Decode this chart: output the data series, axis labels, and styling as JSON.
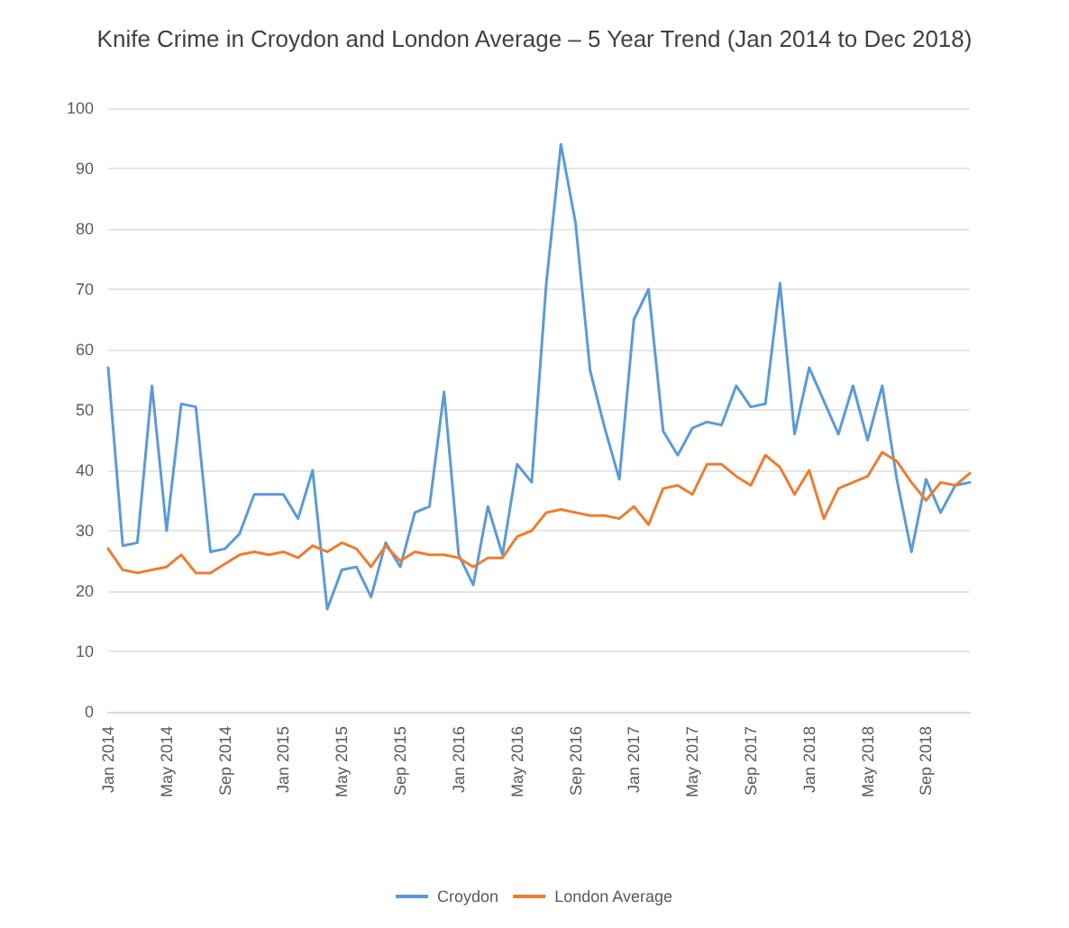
{
  "chart_data": {
    "type": "line",
    "title": "Knife Crime in Croydon and London Average – 5 Year Trend (Jan 2014 to Dec 2018)",
    "categories": [
      "Jan 2014",
      null,
      null,
      null,
      "May 2014",
      null,
      null,
      null,
      "Sep 2014",
      null,
      null,
      null,
      "Jan 2015",
      null,
      null,
      null,
      "May 2015",
      null,
      null,
      null,
      "Sep 2015",
      null,
      null,
      null,
      "Jan 2016",
      null,
      null,
      null,
      "May 2016",
      null,
      null,
      null,
      "Sep 2016",
      null,
      null,
      null,
      "Jan 2017",
      null,
      null,
      null,
      "May 2017",
      null,
      null,
      null,
      "Sep 2017",
      null,
      null,
      null,
      "Jan 2018",
      null,
      null,
      null,
      "May 2018",
      null,
      null,
      null,
      "Sep 2018",
      null,
      null,
      null
    ],
    "series": [
      {
        "name": "Croydon",
        "color": "#5b9bd5",
        "values": [
          57,
          27.5,
          28,
          54,
          30,
          51,
          50.5,
          26.5,
          27,
          29.5,
          36,
          36,
          36,
          32,
          40,
          17,
          23.5,
          24,
          19,
          28,
          24,
          33,
          34,
          53,
          26,
          21,
          34,
          26,
          41,
          38,
          71,
          94,
          81,
          56.5,
          47,
          38.5,
          65,
          70,
          46.5,
          42.5,
          47,
          48,
          47.5,
          54,
          50.5,
          51,
          71,
          46,
          57,
          51.5,
          46,
          54,
          45,
          54,
          38.5,
          26.5,
          38.5,
          33,
          37.5,
          38
        ]
      },
      {
        "name": "London Average",
        "color": "#ed7d31",
        "values": [
          27,
          23.5,
          23,
          23.5,
          24,
          26,
          23,
          23,
          24.5,
          26,
          26.5,
          26,
          26.5,
          25.5,
          27.5,
          26.5,
          28,
          27,
          24,
          27.5,
          25,
          26.5,
          26,
          26,
          25.5,
          24,
          25.5,
          25.5,
          29,
          30,
          33,
          33.5,
          33,
          32.5,
          32.5,
          32,
          34,
          31,
          37,
          37.5,
          36,
          41,
          41,
          39,
          37.5,
          42.5,
          40.5,
          36,
          40,
          32,
          37,
          38,
          39,
          43,
          41.5,
          38,
          35,
          38,
          37.5,
          39.5
        ]
      }
    ],
    "ylim": [
      0,
      100
    ],
    "yticks": [
      0,
      10,
      20,
      30,
      40,
      50,
      60,
      70,
      80,
      90,
      100
    ],
    "grid": "y",
    "legend": "bottom",
    "marker": "none",
    "line_style": "solid"
  }
}
